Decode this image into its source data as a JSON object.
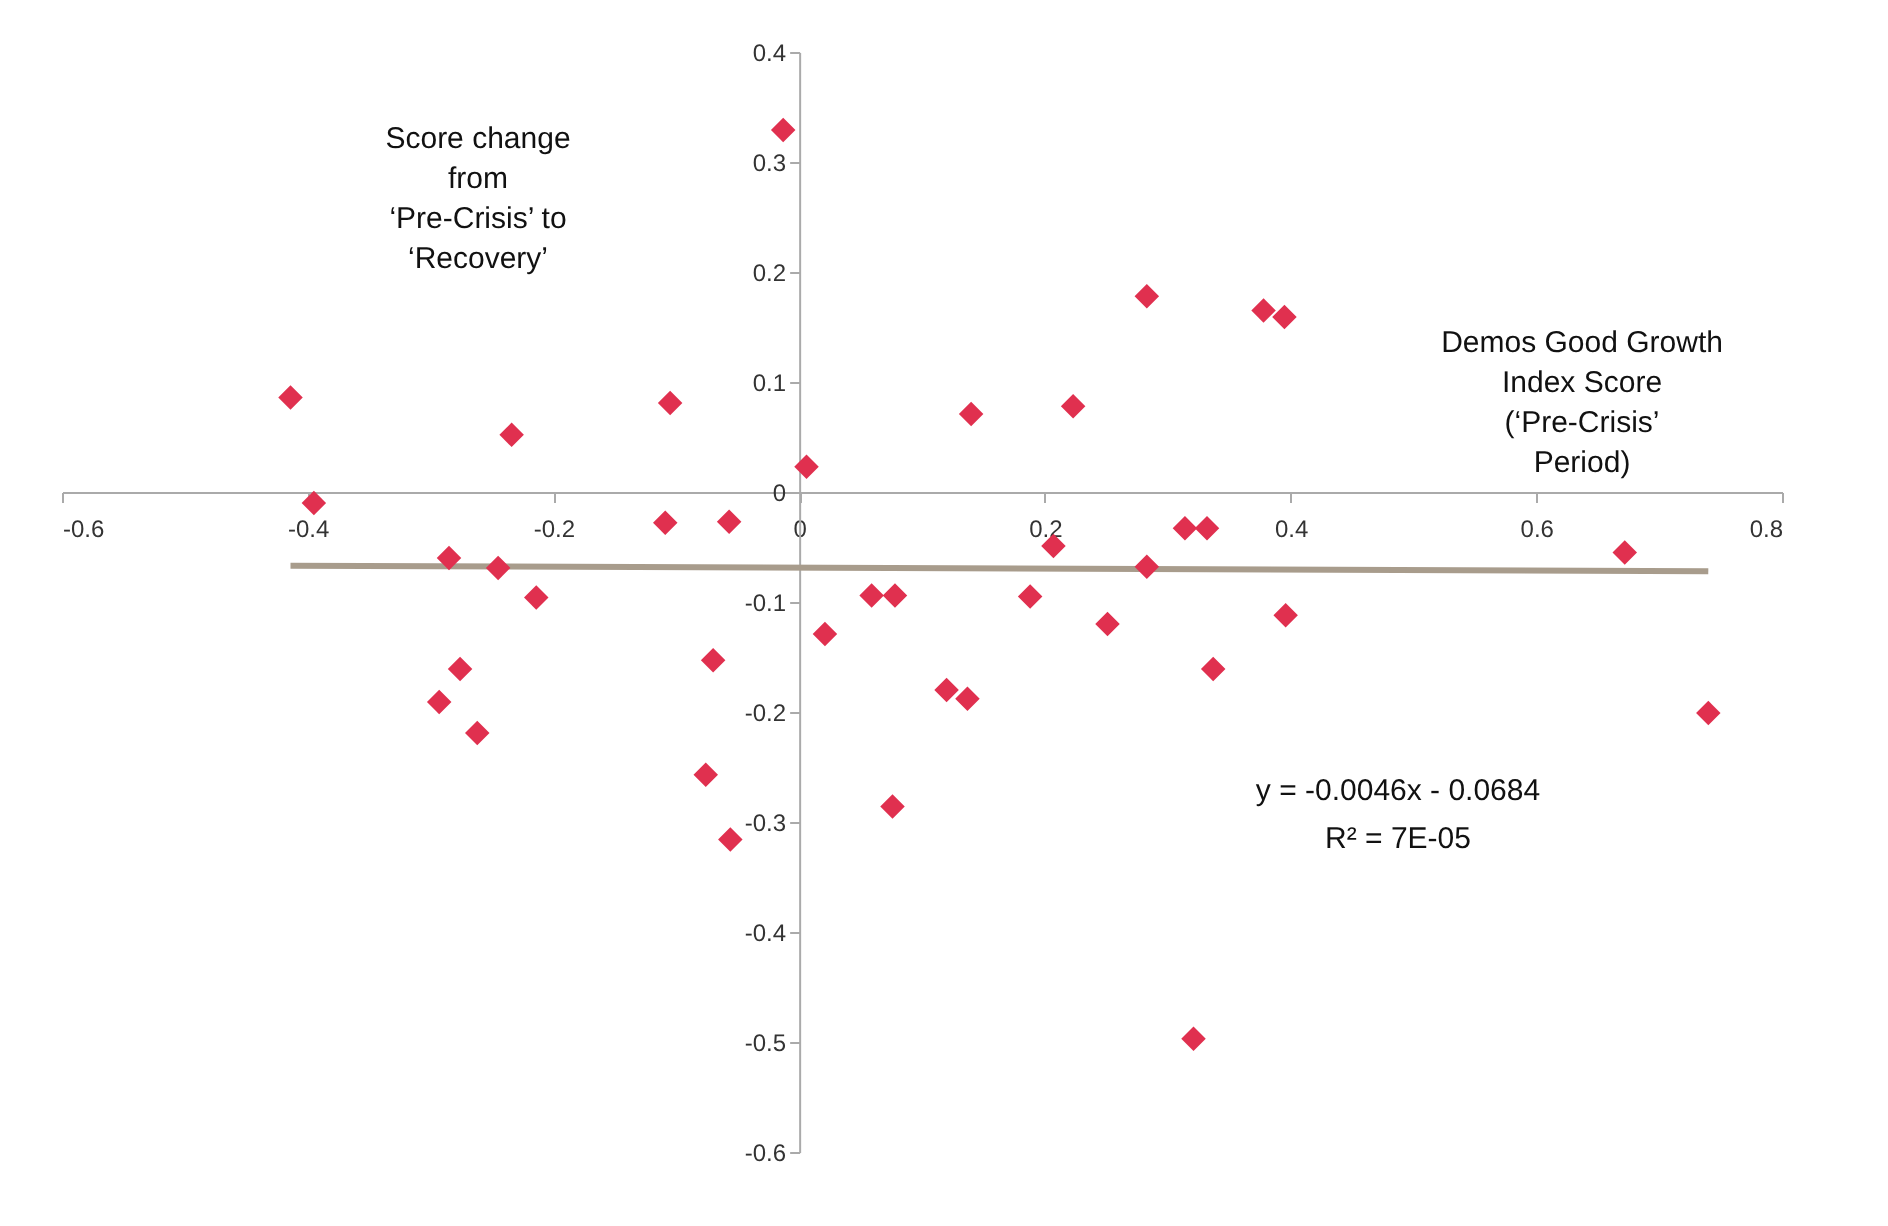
{
  "chart_data": {
    "type": "scatter",
    "xlabel": "Demos Good Growth Index Score (‘Pre-Crisis’ Period)",
    "ylabel": "Score change from ‘Pre-Crisis’ to ‘Recovery’",
    "annotations": [
      "y = -0.0046x - 0.0684",
      "R² = 7E-05"
    ],
    "xlim": [
      -0.6,
      0.8
    ],
    "ylim": [
      -0.6,
      0.4
    ],
    "xticks": [
      -0.6,
      -0.4,
      -0.2,
      0,
      0.2,
      0.4,
      0.6,
      0.8
    ],
    "yticks": [
      -0.6,
      -0.5,
      -0.4,
      -0.3,
      -0.2,
      -0.1,
      0,
      0.1,
      0.2,
      0.3,
      0.4
    ],
    "marker": "diamond",
    "grid": false,
    "series": [
      {
        "color": "#e0304f",
        "x": [
          -0.414,
          -0.395,
          -0.234,
          -0.105,
          -0.013,
          0.006,
          -0.109,
          -0.057,
          -0.285,
          -0.245,
          -0.214,
          -0.276,
          -0.293,
          -0.262,
          -0.07,
          -0.076,
          -0.056,
          0.021,
          0.059,
          0.078,
          0.076,
          0.14,
          0.223,
          0.283,
          0.378,
          0.395,
          0.207,
          0.314,
          0.332,
          0.283,
          0.672,
          0.188,
          0.251,
          0.396,
          0.337,
          0.12,
          0.137,
          0.74,
          0.321
        ],
        "values": [
          0.086,
          -0.01,
          0.052,
          0.081,
          0.329,
          0.023,
          -0.028,
          -0.027,
          -0.06,
          -0.069,
          -0.096,
          -0.161,
          -0.191,
          -0.219,
          -0.153,
          -0.257,
          -0.316,
          -0.129,
          -0.094,
          -0.094,
          -0.286,
          0.071,
          0.078,
          0.178,
          0.165,
          0.159,
          -0.049,
          -0.033,
          -0.033,
          -0.068,
          -0.055,
          -0.095,
          -0.12,
          -0.112,
          -0.161,
          -0.18,
          -0.188,
          -0.201,
          -0.497
        ]
      },
      {
        "type": "line",
        "marker": "none",
        "color": "#a89c8c",
        "x": [
          -0.414,
          0.74
        ],
        "values": [
          -0.067,
          -0.072
        ]
      }
    ]
  }
}
